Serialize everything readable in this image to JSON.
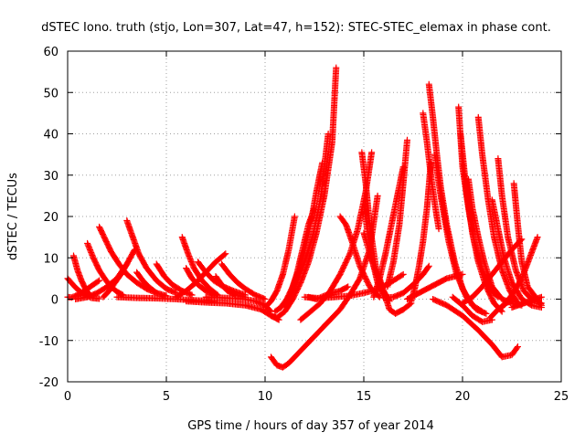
{
  "chart_data": {
    "type": "scatter",
    "title": "dSTEC Iono. truth (stjo, Lon=307, Lat=47, h=152): STEC-STEC_elemax in phase cont.",
    "xlabel": "GPS time / hours of day 357 of year 2014",
    "ylabel": "dSTEC  / TECUs",
    "xlim": [
      0,
      25
    ],
    "ylim": [
      -20,
      60
    ],
    "x_ticks": [
      0,
      5,
      10,
      15,
      20,
      25
    ],
    "y_ticks": [
      -20,
      -10,
      0,
      10,
      20,
      30,
      40,
      50,
      60
    ],
    "grid": true,
    "legend": "none",
    "marker": "plus",
    "color": "#ff0000",
    "series": [
      {
        "x": [
          0.0,
          0.4,
          0.8,
          1.2,
          1.6
        ],
        "y": [
          5.0,
          2.8,
          1.2,
          0.3,
          0.1
        ]
      },
      {
        "x": [
          0.0,
          0.2,
          0.4,
          0.7,
          1.0,
          1.3,
          1.6
        ],
        "y": [
          0.5,
          0.4,
          0.8,
          1.5,
          2.5,
          3.5,
          4.5
        ]
      },
      {
        "x": [
          0.3,
          0.5,
          0.7,
          0.9,
          1.1
        ],
        "y": [
          10.5,
          7.0,
          4.5,
          2.5,
          1.0
        ]
      },
      {
        "x": [
          1.0,
          1.3,
          1.6,
          1.9,
          2.2,
          2.5,
          2.8
        ],
        "y": [
          13.5,
          10.0,
          7.0,
          4.8,
          3.0,
          1.8,
          1.0
        ]
      },
      {
        "x": [
          1.6,
          1.9,
          2.2,
          2.6,
          3.0,
          3.5,
          4.0,
          4.5
        ],
        "y": [
          17.5,
          14.5,
          11.5,
          8.5,
          6.0,
          4.0,
          2.5,
          1.5
        ]
      },
      {
        "x": [
          0.4,
          1.0,
          1.5,
          2.0,
          2.5,
          3.0,
          3.4
        ],
        "y": [
          0.0,
          0.5,
          1.5,
          3.0,
          5.0,
          8.5,
          12.0
        ]
      },
      {
        "x": [
          1.8,
          2.1,
          2.4,
          2.7,
          3.0
        ],
        "y": [
          0.5,
          2.0,
          4.0,
          6.0,
          8.5
        ]
      },
      {
        "x": [
          3.0,
          3.3,
          3.6,
          4.0,
          4.5,
          5.0,
          5.5
        ],
        "y": [
          19.0,
          15.0,
          11.0,
          7.5,
          4.5,
          2.5,
          1.5
        ]
      },
      {
        "x": [
          3.5,
          3.8,
          4.1,
          4.5,
          5.0
        ],
        "y": [
          6.5,
          4.5,
          3.0,
          1.5,
          0.8
        ]
      },
      {
        "x": [
          4.5,
          4.9,
          5.3,
          5.8,
          6.3
        ],
        "y": [
          8.5,
          5.5,
          3.5,
          2.0,
          1.0
        ]
      },
      {
        "x": [
          2.5,
          3.5,
          4.5,
          5.5,
          6.5,
          7.5
        ],
        "y": [
          0.5,
          0.3,
          0.2,
          0.0,
          -0.3,
          -0.5
        ]
      },
      {
        "x": [
          5.8,
          6.1,
          6.4,
          6.8,
          7.2,
          7.6
        ],
        "y": [
          15.0,
          11.0,
          7.5,
          4.5,
          2.5,
          1.0
        ]
      },
      {
        "x": [
          6.0,
          6.3,
          6.6,
          7.0,
          7.5
        ],
        "y": [
          7.5,
          5.0,
          3.5,
          2.0,
          1.0
        ]
      },
      {
        "x": [
          6.6,
          7.0,
          7.4,
          7.9,
          8.4,
          9.0
        ],
        "y": [
          9.0,
          6.5,
          4.5,
          3.0,
          2.0,
          1.0
        ]
      },
      {
        "x": [
          7.5,
          7.8,
          8.1,
          8.5,
          9.0
        ],
        "y": [
          5.5,
          3.5,
          2.0,
          1.0,
          0.5
        ]
      },
      {
        "x": [
          7.8,
          8.2,
          8.6,
          9.0,
          9.5,
          10.0
        ],
        "y": [
          8.5,
          6.0,
          4.0,
          2.5,
          1.0,
          0.0
        ]
      },
      {
        "x": [
          5.5,
          6.0,
          6.5,
          7.0,
          7.5,
          8.0
        ],
        "y": [
          0.5,
          2.0,
          4.0,
          6.5,
          9.0,
          11.0
        ]
      },
      {
        "x": [
          7.0,
          8.0,
          9.0,
          9.5,
          10.0,
          10.3
        ],
        "y": [
          0.5,
          0.3,
          0.0,
          -0.5,
          -1.5,
          -3.0
        ]
      },
      {
        "x": [
          6.0,
          7.0,
          8.0,
          9.0,
          9.8,
          10.3,
          10.7
        ],
        "y": [
          -0.5,
          -0.8,
          -1.0,
          -1.5,
          -2.5,
          -4.0,
          -5.0
        ]
      },
      {
        "x": [
          10.3,
          10.6,
          11.0,
          11.4,
          11.8,
          12.2,
          12.6,
          13.0,
          13.4,
          13.6
        ],
        "y": [
          -4.0,
          -4.5,
          -3.0,
          0.0,
          4.0,
          9.0,
          16.0,
          25.0,
          38.0,
          56.0
        ]
      },
      {
        "x": [
          10.5,
          10.8,
          11.2,
          11.6,
          12.0,
          12.4,
          12.8,
          13.2
        ],
        "y": [
          -3.0,
          -2.0,
          0.5,
          4.0,
          9.0,
          15.0,
          24.0,
          40.0
        ]
      },
      {
        "x": [
          10.8,
          11.1,
          11.4,
          11.7,
          12.0,
          12.3,
          12.6,
          12.9
        ],
        "y": [
          -2.0,
          0.0,
          3.0,
          7.0,
          12.0,
          18.0,
          26.0,
          33.0
        ]
      },
      {
        "x": [
          11.0,
          11.3,
          11.6,
          11.9,
          12.2,
          12.5
        ],
        "y": [
          -1.5,
          1.5,
          6.0,
          12.0,
          18.0,
          22.0
        ]
      },
      {
        "x": [
          10.0,
          10.3,
          10.6,
          10.9,
          11.2,
          11.5
        ],
        "y": [
          -2.0,
          -0.5,
          2.0,
          6.0,
          12.0,
          20.0
        ]
      },
      {
        "x": [
          10.3,
          10.6,
          10.9,
          11.2,
          11.5,
          11.9,
          12.3
        ],
        "y": [
          -14.0,
          -16.0,
          -16.5,
          -15.5,
          -14.0,
          -12.0,
          -10.0
        ]
      },
      {
        "x": [
          12.3,
          12.8,
          13.3,
          13.8,
          14.3,
          14.8,
          15.3,
          15.7
        ],
        "y": [
          -10.0,
          -7.5,
          -5.0,
          -2.5,
          1.0,
          5.0,
          12.0,
          25.0
        ]
      },
      {
        "x": [
          11.8,
          12.3,
          12.8,
          13.3,
          13.8,
          14.3,
          14.7,
          15.1,
          15.4
        ],
        "y": [
          -5.0,
          -3.0,
          -1.0,
          2.0,
          6.0,
          11.0,
          17.0,
          26.0,
          35.5
        ]
      },
      {
        "x": [
          12.2,
          12.6,
          13.0,
          13.4,
          13.8,
          14.2
        ],
        "y": [
          0.5,
          0.0,
          0.8,
          1.5,
          2.0,
          3.0
        ]
      },
      {
        "x": [
          12.0,
          12.8,
          13.5,
          14.3,
          15.0,
          15.8,
          16.5,
          17.0
        ],
        "y": [
          0.5,
          0.2,
          0.5,
          0.8,
          1.5,
          2.5,
          4.5,
          6.0
        ]
      },
      {
        "x": [
          13.8,
          14.1,
          14.4,
          14.8,
          15.3,
          15.8
        ],
        "y": [
          20.0,
          18.0,
          14.0,
          8.0,
          3.0,
          0.5
        ]
      },
      {
        "x": [
          14.9,
          15.1,
          15.3,
          15.6,
          16.0,
          16.3
        ],
        "y": [
          35.5,
          28.0,
          18.0,
          8.0,
          2.0,
          -0.5
        ]
      },
      {
        "x": [
          15.0,
          15.2,
          15.4,
          15.7,
          16.0
        ],
        "y": [
          23.0,
          16.0,
          10.0,
          4.0,
          1.0
        ]
      },
      {
        "x": [
          15.0,
          15.5,
          16.0,
          16.3,
          16.6,
          17.0,
          17.4
        ],
        "y": [
          16.0,
          8.0,
          2.0,
          -2.5,
          -3.5,
          -2.5,
          -1.0
        ]
      },
      {
        "x": [
          15.5,
          15.8,
          16.1,
          16.4,
          16.7,
          17.0
        ],
        "y": [
          0.5,
          5.0,
          11.0,
          18.0,
          25.0,
          32.0
        ]
      },
      {
        "x": [
          16.2,
          16.5,
          16.8,
          17.0,
          17.2
        ],
        "y": [
          3.0,
          9.0,
          18.0,
          28.0,
          38.5
        ]
      },
      {
        "x": [
          16.0,
          16.5,
          17.0,
          17.5,
          18.0,
          18.3
        ],
        "y": [
          0.3,
          0.5,
          1.5,
          3.5,
          6.0,
          8.0
        ]
      },
      {
        "x": [
          17.4,
          17.6,
          17.8,
          18.0,
          18.2,
          18.4
        ],
        "y": [
          -0.5,
          3.0,
          8.0,
          14.0,
          22.0,
          33.0
        ]
      },
      {
        "x": [
          17.2,
          17.6,
          18.0,
          18.4,
          18.8,
          19.2,
          19.6,
          20.0
        ],
        "y": [
          0.0,
          1.0,
          2.0,
          3.0,
          4.0,
          5.0,
          5.5,
          6.0
        ]
      },
      {
        "x": [
          18.3,
          18.5,
          18.7,
          18.9,
          19.2,
          19.6,
          20.0,
          20.5,
          21.0
        ],
        "y": [
          52.0,
          44.0,
          35.0,
          27.0,
          18.0,
          9.0,
          2.5,
          -1.5,
          -3.0
        ]
      },
      {
        "x": [
          18.6,
          18.8,
          19.0,
          19.3,
          19.7,
          20.2,
          20.7,
          21.2
        ],
        "y": [
          35.0,
          28.0,
          22.0,
          14.0,
          6.0,
          0.5,
          -2.5,
          -3.5
        ]
      },
      {
        "x": [
          18.0,
          18.2,
          18.4,
          18.6,
          18.8
        ],
        "y": [
          45.0,
          38.0,
          30.0,
          23.0,
          17.0
        ]
      },
      {
        "x": [
          19.8,
          20.0,
          20.3,
          20.6,
          21.0,
          21.4,
          21.8
        ],
        "y": [
          46.5,
          32.0,
          22.0,
          14.0,
          7.0,
          2.5,
          0.5
        ]
      },
      {
        "x": [
          19.9,
          20.2,
          20.5,
          20.8,
          21.2,
          21.6,
          22.0
        ],
        "y": [
          40.0,
          26.0,
          16.0,
          9.0,
          3.0,
          -1.0,
          -3.0
        ]
      },
      {
        "x": [
          20.3,
          20.5,
          20.8,
          21.1,
          21.5,
          22.0,
          22.5,
          23.0
        ],
        "y": [
          29.0,
          22.0,
          15.0,
          9.0,
          3.0,
          0.0,
          -1.0,
          -1.5
        ]
      },
      {
        "x": [
          20.8,
          21.0,
          21.3,
          21.6,
          22.0,
          22.4,
          22.8
        ],
        "y": [
          44.0,
          35.0,
          24.0,
          15.0,
          7.0,
          2.0,
          -1.0
        ]
      },
      {
        "x": [
          21.5,
          21.8,
          22.1,
          22.5,
          23.0,
          23.5,
          24.0
        ],
        "y": [
          24.0,
          17.0,
          10.0,
          4.0,
          0.0,
          -1.5,
          -2.0
        ]
      },
      {
        "x": [
          21.8,
          22.0,
          22.3,
          22.7,
          23.1,
          23.5,
          24.0
        ],
        "y": [
          34.0,
          25.0,
          15.0,
          7.0,
          2.0,
          0.0,
          -1.0
        ]
      },
      {
        "x": [
          22.6,
          22.8,
          23.0,
          23.3,
          23.7,
          24.0
        ],
        "y": [
          28.0,
          18.0,
          9.0,
          3.0,
          0.5,
          -1.5
        ]
      },
      {
        "x": [
          22.0,
          22.5,
          23.0,
          23.4,
          23.8
        ],
        "y": [
          -2.0,
          1.0,
          5.0,
          10.0,
          15.0
        ]
      },
      {
        "x": [
          18.5,
          19.2,
          20.0,
          20.8,
          21.5,
          22.0,
          22.5,
          22.8
        ],
        "y": [
          0.0,
          -1.5,
          -4.0,
          -7.5,
          -11.0,
          -14.0,
          -13.5,
          -11.5
        ]
      },
      {
        "x": [
          19.5,
          20.0,
          20.5,
          21.0,
          21.5
        ],
        "y": [
          0.5,
          -1.5,
          -4.0,
          -5.5,
          -5.0
        ]
      },
      {
        "x": [
          21.4,
          21.8,
          22.2,
          22.6
        ],
        "y": [
          -4.5,
          -2.5,
          -1.0,
          0.0
        ]
      },
      {
        "x": [
          22.5,
          22.8,
          23.1,
          23.4,
          23.7,
          24.0
        ],
        "y": [
          -2.0,
          -1.5,
          -1.0,
          -0.5,
          0.0,
          0.5
        ]
      },
      {
        "x": [
          20.0,
          20.5,
          21.0,
          21.5,
          22.0,
          22.5,
          23.0
        ],
        "y": [
          -1.0,
          0.5,
          3.0,
          6.0,
          9.0,
          12.0,
          14.5
        ]
      }
    ]
  }
}
